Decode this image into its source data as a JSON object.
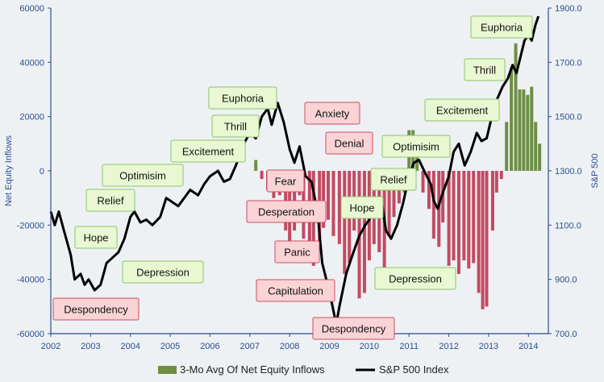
{
  "chart_data": {
    "type": "bar+line",
    "title": "",
    "x_axis": {
      "ticks": [
        "2002",
        "2003",
        "2004",
        "2005",
        "2006",
        "2007",
        "2008",
        "2009",
        "2010",
        "2011",
        "2012",
        "2013",
        "2014"
      ]
    },
    "y_left": {
      "label": "Net Equity Inflows",
      "ticks": [
        "60000",
        "40000",
        "20000",
        "0",
        "-20000",
        "-40000",
        "-60000"
      ],
      "range": [
        -60000,
        60000
      ]
    },
    "y_right": {
      "label": "S&P 500",
      "ticks": [
        "1900.0",
        "1700.0",
        "1500.0",
        "1300.0",
        "1100.0",
        "900.0",
        "700.0"
      ],
      "range": [
        700,
        1900
      ]
    },
    "grid": false,
    "legend_position": "bottom",
    "series": [
      {
        "name": "3-Mo Avg Of Net Equity Inflows",
        "kind": "bar",
        "color_positive": "#6e8e45",
        "color_negative": "#c24a62",
        "values": [
          [
            2007.15,
            4000
          ],
          [
            2007.3,
            -3000
          ],
          [
            2007.45,
            -7000
          ],
          [
            2007.6,
            -10000
          ],
          [
            2007.75,
            -9000
          ],
          [
            2007.9,
            -22000
          ],
          [
            2008.0,
            -26000
          ],
          [
            2008.12,
            -22000
          ],
          [
            2008.25,
            -9000
          ],
          [
            2008.35,
            -25000
          ],
          [
            2008.5,
            -29000
          ],
          [
            2008.6,
            -35000
          ],
          [
            2008.75,
            -29000
          ],
          [
            2008.85,
            -21000
          ],
          [
            2008.97,
            -18000
          ],
          [
            2009.1,
            -24000
          ],
          [
            2009.25,
            -27000
          ],
          [
            2009.38,
            -38000
          ],
          [
            2009.5,
            -34000
          ],
          [
            2009.62,
            -22000
          ],
          [
            2009.75,
            -47000
          ],
          [
            2009.88,
            -45000
          ],
          [
            2010.0,
            -33000
          ],
          [
            2010.12,
            -27000
          ],
          [
            2010.25,
            -30000
          ],
          [
            2010.38,
            -37000
          ],
          [
            2010.5,
            -24000
          ],
          [
            2010.62,
            -17000
          ],
          [
            2010.75,
            -12000
          ],
          [
            2010.88,
            -8000
          ],
          [
            2011.0,
            15000
          ],
          [
            2011.1,
            15000
          ],
          [
            2011.2,
            8000
          ],
          [
            2011.35,
            -8000
          ],
          [
            2011.5,
            -14000
          ],
          [
            2011.62,
            -25000
          ],
          [
            2011.75,
            -28000
          ],
          [
            2011.85,
            -19000
          ],
          [
            2012.0,
            -35000
          ],
          [
            2012.12,
            -33000
          ],
          [
            2012.25,
            -38000
          ],
          [
            2012.38,
            -33000
          ],
          [
            2012.5,
            -36000
          ],
          [
            2012.62,
            -34000
          ],
          [
            2012.75,
            -45000
          ],
          [
            2012.85,
            -51000
          ],
          [
            2012.95,
            -50000
          ],
          [
            2013.1,
            -22000
          ],
          [
            2013.2,
            -8000
          ],
          [
            2013.32,
            -3000
          ],
          [
            2013.45,
            18000
          ],
          [
            2013.57,
            38000
          ],
          [
            2013.68,
            47000
          ],
          [
            2013.78,
            30000
          ],
          [
            2013.88,
            30000
          ],
          [
            2013.98,
            28000
          ],
          [
            2014.08,
            31000
          ],
          [
            2014.18,
            18000
          ],
          [
            2014.28,
            10000
          ]
        ]
      },
      {
        "name": "S&P 500 Index",
        "kind": "line",
        "axis": "right",
        "color": "#000000",
        "values": [
          [
            2002.0,
            1150
          ],
          [
            2002.1,
            1100
          ],
          [
            2002.2,
            1150
          ],
          [
            2002.33,
            1080
          ],
          [
            2002.5,
            990
          ],
          [
            2002.6,
            900
          ],
          [
            2002.75,
            920
          ],
          [
            2002.85,
            880
          ],
          [
            2002.95,
            900
          ],
          [
            2003.1,
            860
          ],
          [
            2003.25,
            880
          ],
          [
            2003.4,
            960
          ],
          [
            2003.55,
            980
          ],
          [
            2003.7,
            1000
          ],
          [
            2003.85,
            1050
          ],
          [
            2004.0,
            1130
          ],
          [
            2004.1,
            1150
          ],
          [
            2004.25,
            1110
          ],
          [
            2004.4,
            1120
          ],
          [
            2004.55,
            1100
          ],
          [
            2004.75,
            1130
          ],
          [
            2004.9,
            1200
          ],
          [
            2005.0,
            1190
          ],
          [
            2005.2,
            1170
          ],
          [
            2005.35,
            1200
          ],
          [
            2005.5,
            1230
          ],
          [
            2005.7,
            1210
          ],
          [
            2005.85,
            1250
          ],
          [
            2006.0,
            1280
          ],
          [
            2006.2,
            1300
          ],
          [
            2006.35,
            1260
          ],
          [
            2006.5,
            1270
          ],
          [
            2006.65,
            1320
          ],
          [
            2006.85,
            1400
          ],
          [
            2007.0,
            1440
          ],
          [
            2007.15,
            1420
          ],
          [
            2007.3,
            1500
          ],
          [
            2007.45,
            1530
          ],
          [
            2007.55,
            1470
          ],
          [
            2007.7,
            1550
          ],
          [
            2007.85,
            1480
          ],
          [
            2008.0,
            1380
          ],
          [
            2008.12,
            1330
          ],
          [
            2008.25,
            1390
          ],
          [
            2008.4,
            1280
          ],
          [
            2008.55,
            1260
          ],
          [
            2008.7,
            1150
          ],
          [
            2008.82,
            960
          ],
          [
            2008.92,
            900
          ],
          [
            2009.05,
            820
          ],
          [
            2009.17,
            735
          ],
          [
            2009.25,
            800
          ],
          [
            2009.42,
            920
          ],
          [
            2009.58,
            990
          ],
          [
            2009.75,
            1060
          ],
          [
            2009.9,
            1100
          ],
          [
            2010.0,
            1120
          ],
          [
            2010.15,
            1170
          ],
          [
            2010.3,
            1200
          ],
          [
            2010.42,
            1080
          ],
          [
            2010.55,
            1050
          ],
          [
            2010.7,
            1100
          ],
          [
            2010.85,
            1180
          ],
          [
            2011.0,
            1280
          ],
          [
            2011.12,
            1330
          ],
          [
            2011.25,
            1340
          ],
          [
            2011.38,
            1300
          ],
          [
            2011.55,
            1250
          ],
          [
            2011.62,
            1190
          ],
          [
            2011.72,
            1160
          ],
          [
            2011.85,
            1220
          ],
          [
            2012.0,
            1280
          ],
          [
            2012.12,
            1370
          ],
          [
            2012.25,
            1400
          ],
          [
            2012.4,
            1320
          ],
          [
            2012.55,
            1370
          ],
          [
            2012.7,
            1440
          ],
          [
            2012.82,
            1410
          ],
          [
            2012.95,
            1420
          ],
          [
            2013.08,
            1500
          ],
          [
            2013.2,
            1560
          ],
          [
            2013.35,
            1610
          ],
          [
            2013.48,
            1640
          ],
          [
            2013.6,
            1690
          ],
          [
            2013.7,
            1660
          ],
          [
            2013.8,
            1720
          ],
          [
            2013.9,
            1780
          ],
          [
            2014.0,
            1800
          ],
          [
            2014.08,
            1780
          ],
          [
            2014.18,
            1840
          ],
          [
            2014.25,
            1870
          ]
        ]
      }
    ],
    "annotations": [
      {
        "text": "Despondency",
        "style": "red"
      },
      {
        "text": "Hope",
        "style": "green"
      },
      {
        "text": "Relief",
        "style": "green"
      },
      {
        "text": "Optimisim",
        "style": "green"
      },
      {
        "text": "Depression",
        "style": "green"
      },
      {
        "text": "Excitement",
        "style": "green"
      },
      {
        "text": "Thrill",
        "style": "green"
      },
      {
        "text": "Euphoria",
        "style": "green"
      },
      {
        "text": "Anxiety",
        "style": "red"
      },
      {
        "text": "Denial",
        "style": "red"
      },
      {
        "text": "Fear",
        "style": "red"
      },
      {
        "text": "Desperation",
        "style": "red"
      },
      {
        "text": "Panic",
        "style": "red"
      },
      {
        "text": "Capitulation",
        "style": "red"
      },
      {
        "text": "Despondency",
        "style": "red"
      },
      {
        "text": "Hope",
        "style": "green"
      },
      {
        "text": "Relief",
        "style": "green"
      },
      {
        "text": "Optimisim",
        "style": "green"
      },
      {
        "text": "Depression",
        "style": "green"
      },
      {
        "text": "Excitement",
        "style": "green"
      },
      {
        "text": "Thrill",
        "style": "green"
      },
      {
        "text": "Euphoria",
        "style": "green"
      }
    ],
    "colors": {
      "axis": "#2a4e8e",
      "label_green_fill": "#e9f7d3",
      "label_green_stroke": "#8cc46a",
      "label_red_fill": "#f9d3d6",
      "label_red_stroke": "#cc4d62"
    }
  }
}
